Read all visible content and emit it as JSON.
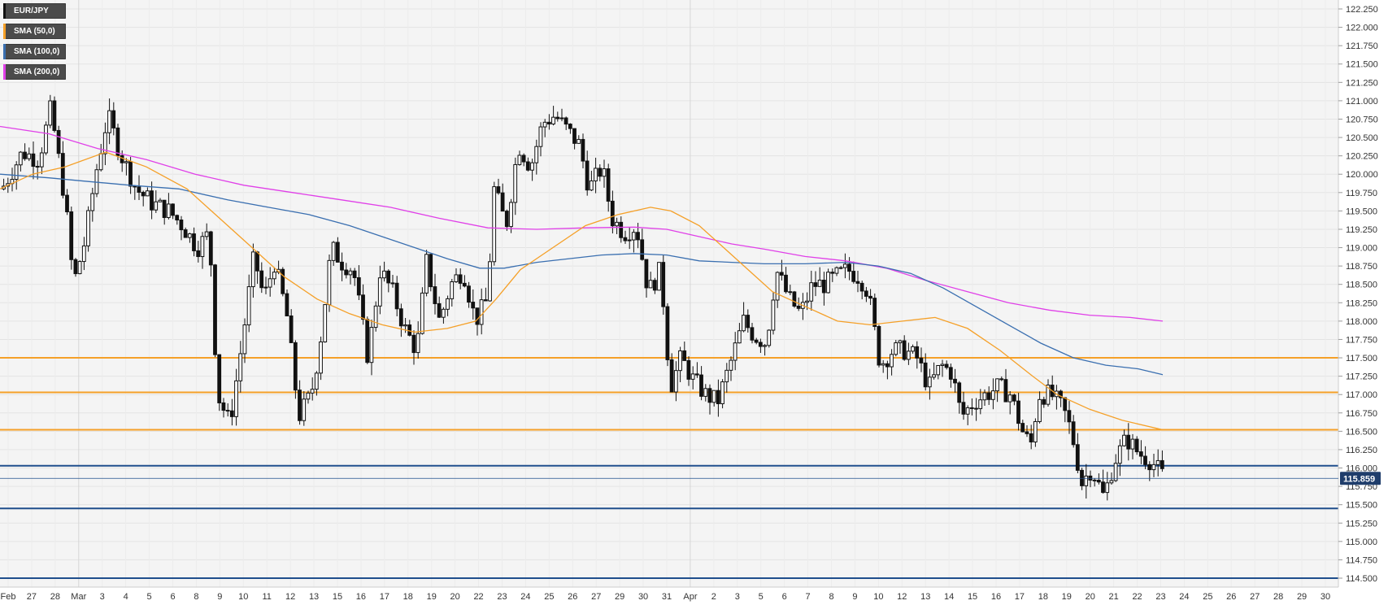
{
  "chart_data": {
    "type": "candlestick",
    "symbol": "EUR/JPY",
    "legend": [
      {
        "label": "EUR/JPY",
        "color": "#111111"
      },
      {
        "label": "SMA (50,0)",
        "color": "#f5a028"
      },
      {
        "label": "SMA (100,0)",
        "color": "#3a6fb0"
      },
      {
        "label": "SMA (200,0)",
        "color": "#e040e8"
      }
    ],
    "current_price": "115.859",
    "ylim": [
      114.5,
      122.25
    ],
    "y_ticks": [
      "122.250",
      "122.000",
      "121.750",
      "121.500",
      "121.250",
      "121.000",
      "120.750",
      "120.500",
      "120.250",
      "120.000",
      "119.750",
      "119.500",
      "119.250",
      "119.000",
      "118.750",
      "118.500",
      "118.250",
      "118.000",
      "117.750",
      "117.500",
      "117.250",
      "117.000",
      "116.750",
      "116.500",
      "116.250",
      "116.000",
      "115.750",
      "115.500",
      "115.250",
      "115.000",
      "114.750",
      "114.500"
    ],
    "x_ticks": [
      "Feb",
      "27",
      "28",
      "Mar",
      "3",
      "4",
      "5",
      "6",
      "8",
      "9",
      "10",
      "11",
      "12",
      "13",
      "15",
      "16",
      "17",
      "18",
      "19",
      "20",
      "22",
      "23",
      "24",
      "25",
      "26",
      "27",
      "29",
      "30",
      "31",
      "Apr",
      "2",
      "3",
      "5",
      "6",
      "7",
      "8",
      "9",
      "10",
      "12",
      "13",
      "14",
      "15",
      "16",
      "17",
      "18",
      "19",
      "20",
      "21",
      "22",
      "23",
      "24",
      "25",
      "26",
      "27",
      "28",
      "29",
      "30"
    ],
    "horizontal_levels": [
      {
        "value": 117.5,
        "color": "#f5a028"
      },
      {
        "value": 117.03,
        "color": "#f5a028"
      },
      {
        "value": 116.52,
        "color": "#f5a028"
      },
      {
        "value": 116.03,
        "color": "#1f4e8c"
      },
      {
        "value": 115.45,
        "color": "#1f4e8c"
      },
      {
        "value": 114.5,
        "color": "#1f4e8c"
      }
    ],
    "close_path": [
      [
        0,
        119.8
      ],
      [
        25,
        120.3
      ],
      [
        45,
        120.2
      ],
      [
        60,
        120.9
      ],
      [
        78,
        119.6
      ],
      [
        88,
        118.5
      ],
      [
        102,
        119.1
      ],
      [
        115,
        120.0
      ],
      [
        130,
        120.8
      ],
      [
        145,
        120.3
      ],
      [
        165,
        119.8
      ],
      [
        185,
        119.6
      ],
      [
        205,
        119.5
      ],
      [
        222,
        119.3
      ],
      [
        240,
        119.0
      ],
      [
        255,
        119.2
      ],
      [
        265,
        117.0
      ],
      [
        280,
        116.6
      ],
      [
        295,
        117.7
      ],
      [
        310,
        118.9
      ],
      [
        322,
        118.3
      ],
      [
        335,
        118.8
      ],
      [
        350,
        118.1
      ],
      [
        365,
        116.7
      ],
      [
        380,
        117.0
      ],
      [
        390,
        117.6
      ],
      [
        405,
        119.0
      ],
      [
        418,
        118.8
      ],
      [
        432,
        118.7
      ],
      [
        450,
        117.5
      ],
      [
        465,
        118.7
      ],
      [
        480,
        118.4
      ],
      [
        495,
        117.9
      ],
      [
        510,
        117.6
      ],
      [
        522,
        118.8
      ],
      [
        538,
        118.0
      ],
      [
        552,
        118.5
      ],
      [
        567,
        118.7
      ],
      [
        582,
        118.0
      ],
      [
        597,
        118.3
      ],
      [
        605,
        119.8
      ],
      [
        620,
        119.3
      ],
      [
        635,
        120.4
      ],
      [
        650,
        120.1
      ],
      [
        665,
        120.7
      ],
      [
        680,
        120.8
      ],
      [
        695,
        120.6
      ],
      [
        710,
        120.4
      ],
      [
        722,
        119.8
      ],
      [
        738,
        120.1
      ],
      [
        750,
        119.4
      ],
      [
        765,
        119.2
      ],
      [
        780,
        119.3
      ],
      [
        795,
        118.4
      ],
      [
        810,
        118.7
      ],
      [
        822,
        117.1
      ],
      [
        835,
        117.5
      ],
      [
        850,
        117.2
      ],
      [
        865,
        117.0
      ],
      [
        880,
        116.9
      ],
      [
        895,
        117.4
      ],
      [
        912,
        118.0
      ],
      [
        925,
        117.8
      ],
      [
        940,
        117.7
      ],
      [
        952,
        118.7
      ],
      [
        968,
        118.3
      ],
      [
        982,
        118.1
      ],
      [
        997,
        118.5
      ],
      [
        1012,
        118.5
      ],
      [
        1025,
        118.6
      ],
      [
        1040,
        118.7
      ],
      [
        1055,
        118.6
      ],
      [
        1065,
        118.4
      ],
      [
        1080,
        117.4
      ],
      [
        1095,
        117.6
      ],
      [
        1110,
        117.6
      ],
      [
        1125,
        117.5
      ],
      [
        1140,
        117.1
      ],
      [
        1155,
        117.4
      ],
      [
        1168,
        117.3
      ],
      [
        1180,
        116.7
      ],
      [
        1195,
        116.9
      ],
      [
        1210,
        117.0
      ],
      [
        1225,
        117.1
      ],
      [
        1240,
        117.0
      ],
      [
        1255,
        116.5
      ],
      [
        1265,
        116.3
      ],
      [
        1275,
        117.0
      ],
      [
        1290,
        117.0
      ],
      [
        1305,
        116.8
      ],
      [
        1315,
        116.5
      ],
      [
        1328,
        115.8
      ],
      [
        1340,
        116.0
      ],
      [
        1355,
        115.6
      ],
      [
        1368,
        116.1
      ],
      [
        1383,
        116.4
      ],
      [
        1398,
        116.2
      ],
      [
        1413,
        116.1
      ],
      [
        1430,
        115.86
      ]
    ],
    "sma50": [
      [
        0,
        119.8
      ],
      [
        40,
        120.0
      ],
      [
        80,
        120.1
      ],
      [
        130,
        120.3
      ],
      [
        180,
        120.1
      ],
      [
        230,
        119.8
      ],
      [
        270,
        119.4
      ],
      [
        310,
        119.0
      ],
      [
        350,
        118.6
      ],
      [
        390,
        118.3
      ],
      [
        430,
        118.1
      ],
      [
        470,
        117.95
      ],
      [
        510,
        117.85
      ],
      [
        550,
        117.9
      ],
      [
        585,
        118.0
      ],
      [
        610,
        118.3
      ],
      [
        640,
        118.7
      ],
      [
        680,
        119.0
      ],
      [
        720,
        119.3
      ],
      [
        760,
        119.45
      ],
      [
        800,
        119.55
      ],
      [
        825,
        119.5
      ],
      [
        860,
        119.3
      ],
      [
        890,
        119.0
      ],
      [
        920,
        118.7
      ],
      [
        950,
        118.4
      ],
      [
        990,
        118.2
      ],
      [
        1030,
        118.0
      ],
      [
        1070,
        117.95
      ],
      [
        1110,
        118.0
      ],
      [
        1150,
        118.05
      ],
      [
        1190,
        117.9
      ],
      [
        1230,
        117.6
      ],
      [
        1270,
        117.25
      ],
      [
        1300,
        117.0
      ],
      [
        1340,
        116.8
      ],
      [
        1380,
        116.65
      ],
      [
        1430,
        116.52
      ]
    ],
    "sma100": [
      [
        0,
        120.0
      ],
      [
        60,
        119.95
      ],
      [
        110,
        119.9
      ],
      [
        160,
        119.85
      ],
      [
        220,
        119.8
      ],
      [
        280,
        119.65
      ],
      [
        330,
        119.55
      ],
      [
        380,
        119.45
      ],
      [
        430,
        119.3
      ],
      [
        470,
        119.15
      ],
      [
        510,
        119.0
      ],
      [
        550,
        118.85
      ],
      [
        590,
        118.72
      ],
      [
        620,
        118.72
      ],
      [
        660,
        118.8
      ],
      [
        700,
        118.85
      ],
      [
        740,
        118.9
      ],
      [
        780,
        118.92
      ],
      [
        820,
        118.9
      ],
      [
        860,
        118.82
      ],
      [
        900,
        118.8
      ],
      [
        940,
        118.78
      ],
      [
        990,
        118.78
      ],
      [
        1040,
        118.8
      ],
      [
        1080,
        118.75
      ],
      [
        1120,
        118.65
      ],
      [
        1160,
        118.45
      ],
      [
        1200,
        118.2
      ],
      [
        1240,
        117.95
      ],
      [
        1280,
        117.7
      ],
      [
        1320,
        117.5
      ],
      [
        1360,
        117.4
      ],
      [
        1400,
        117.35
      ],
      [
        1430,
        117.27
      ]
    ],
    "sma200": [
      [
        0,
        120.65
      ],
      [
        60,
        120.55
      ],
      [
        120,
        120.35
      ],
      [
        180,
        120.2
      ],
      [
        240,
        120.0
      ],
      [
        300,
        119.85
      ],
      [
        360,
        119.75
      ],
      [
        420,
        119.65
      ],
      [
        480,
        119.55
      ],
      [
        540,
        119.4
      ],
      [
        600,
        119.27
      ],
      [
        660,
        119.25
      ],
      [
        720,
        119.27
      ],
      [
        780,
        119.28
      ],
      [
        820,
        119.25
      ],
      [
        860,
        119.15
      ],
      [
        900,
        119.05
      ],
      [
        940,
        118.98
      ],
      [
        990,
        118.88
      ],
      [
        1040,
        118.82
      ],
      [
        1090,
        118.72
      ],
      [
        1140,
        118.55
      ],
      [
        1190,
        118.4
      ],
      [
        1240,
        118.25
      ],
      [
        1290,
        118.15
      ],
      [
        1340,
        118.08
      ],
      [
        1390,
        118.05
      ],
      [
        1430,
        118.0
      ]
    ]
  }
}
